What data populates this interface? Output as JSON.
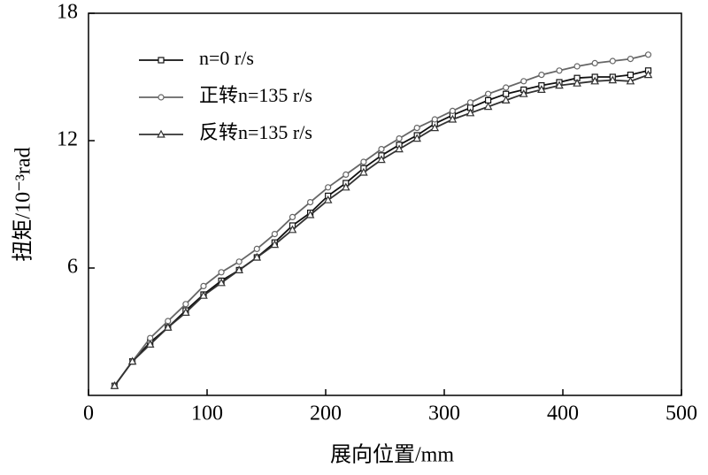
{
  "chart_data": {
    "type": "line",
    "xlabel": "展向位置/mm",
    "ylabel": "扭矩/10⁻³rad",
    "x": [
      22,
      37,
      52,
      67,
      82,
      97,
      112,
      127,
      142,
      157,
      172,
      187,
      202,
      217,
      232,
      247,
      262,
      277,
      292,
      307,
      322,
      337,
      352,
      367,
      382,
      397,
      412,
      427,
      442,
      457,
      472
    ],
    "series": [
      {
        "name": "n=0 r/s",
        "color": "#111111",
        "marker": "square",
        "values": [
          0.45,
          1.6,
          2.5,
          3.2,
          4.0,
          4.75,
          5.4,
          5.9,
          6.5,
          7.2,
          8.0,
          8.6,
          9.4,
          10.0,
          10.7,
          11.3,
          11.8,
          12.25,
          12.8,
          13.2,
          13.55,
          13.9,
          14.2,
          14.4,
          14.6,
          14.75,
          14.95,
          15.0,
          15.0,
          15.1,
          15.3
        ]
      },
      {
        "name": "正转n=135 r/s",
        "color": "#666666",
        "marker": "circle",
        "values": [
          0.45,
          1.6,
          2.7,
          3.5,
          4.3,
          5.15,
          5.8,
          6.3,
          6.9,
          7.6,
          8.4,
          9.1,
          9.8,
          10.4,
          11.0,
          11.6,
          12.1,
          12.6,
          13.0,
          13.4,
          13.8,
          14.2,
          14.5,
          14.8,
          15.1,
          15.3,
          15.5,
          15.65,
          15.75,
          15.85,
          16.05
        ]
      },
      {
        "name": "反转n=135 r/s",
        "color": "#333333",
        "marker": "triangle",
        "values": [
          0.45,
          1.6,
          2.4,
          3.2,
          3.9,
          4.7,
          5.3,
          5.9,
          6.5,
          7.1,
          7.8,
          8.5,
          9.2,
          9.8,
          10.5,
          11.1,
          11.6,
          12.1,
          12.6,
          13.0,
          13.3,
          13.6,
          13.9,
          14.2,
          14.4,
          14.6,
          14.7,
          14.8,
          14.85,
          14.8,
          15.1
        ]
      }
    ],
    "xlim": [
      0,
      500
    ],
    "xticks": [
      0,
      100,
      200,
      300,
      400,
      500
    ],
    "ylim": [
      0,
      18
    ],
    "yticks": [
      6,
      12,
      18
    ],
    "legend": "upper left"
  }
}
